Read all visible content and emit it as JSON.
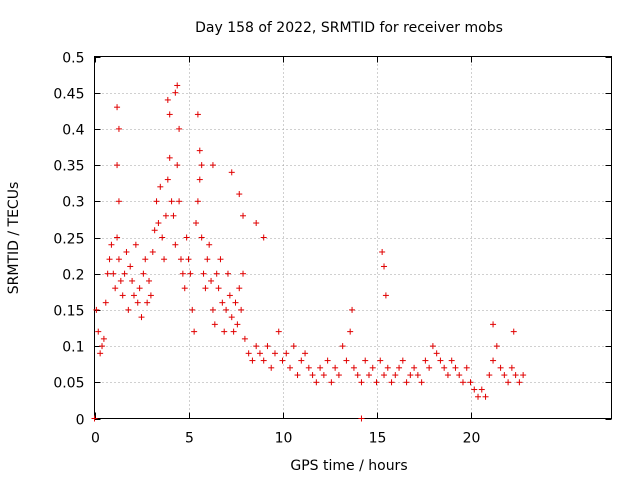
{
  "chart_data": {
    "type": "scatter",
    "title": "Day 158 of 2022, SRMTID for receiver mobs",
    "xlabel": "GPS time / hours",
    "ylabel": "SRMTID / TECUs",
    "xlim": [
      0,
      27.5
    ],
    "ylim": [
      0,
      0.5
    ],
    "xticks": [
      0,
      5,
      10,
      15,
      20
    ],
    "yticks": [
      0,
      0.05,
      0.1,
      0.15,
      0.2,
      0.25,
      0.3,
      0.35,
      0.4,
      0.45,
      0.5
    ],
    "xtick_labels": [
      "0",
      "5",
      "10",
      "15",
      "20"
    ],
    "ytick_labels": [
      "0",
      "0.05",
      "0.1",
      "0.15",
      "0.2",
      "0.25",
      "0.3",
      "0.35",
      "0.4",
      "0.45",
      "0.5"
    ],
    "grid": true,
    "marker": "+",
    "color": "#e00000",
    "series": [
      {
        "name": "SRMTID",
        "x": [
          0.1,
          0.2,
          0.3,
          0.4,
          0.5,
          0.6,
          0.7,
          0.8,
          0.9,
          1.0,
          1.1,
          1.2,
          1.3,
          1.3,
          1.4,
          1.5,
          1.6,
          1.7,
          1.8,
          1.9,
          2.0,
          2.1,
          2.2,
          2.3,
          2.4,
          2.5,
          2.6,
          2.7,
          2.8,
          2.9,
          3.0,
          3.1,
          3.2,
          3.3,
          3.4,
          3.5,
          3.6,
          3.7,
          3.8,
          3.9,
          4.0,
          4.1,
          4.2,
          4.3,
          4.4,
          4.5,
          4.6,
          4.7,
          4.8,
          4.9,
          5.0,
          5.1,
          5.2,
          5.3,
          5.4,
          5.5,
          5.6,
          5.7,
          5.8,
          5.9,
          6.0,
          6.1,
          6.2,
          6.3,
          6.4,
          6.5,
          6.6,
          6.7,
          6.8,
          6.9,
          7.0,
          7.1,
          7.2,
          7.3,
          7.4,
          7.5,
          7.6,
          7.7,
          7.8,
          7.9,
          8.0,
          8.2,
          8.4,
          8.6,
          8.8,
          9.0,
          9.2,
          9.4,
          9.6,
          9.8,
          10.0,
          10.2,
          10.4,
          10.6,
          10.8,
          11.0,
          11.2,
          11.4,
          11.6,
          11.8,
          12.0,
          12.2,
          12.4,
          12.6,
          12.8,
          13.0,
          13.2,
          13.4,
          13.6,
          13.8,
          14.0,
          14.2,
          14.4,
          14.6,
          14.8,
          15.0,
          15.2,
          15.4,
          15.6,
          15.8,
          16.0,
          16.2,
          16.4,
          16.6,
          16.8,
          17.0,
          17.2,
          17.4,
          17.6,
          17.8,
          18.0,
          18.2,
          18.4,
          18.6,
          18.8,
          19.0,
          19.2,
          19.4,
          19.6,
          19.8,
          20.0,
          20.2,
          20.4,
          20.6,
          20.8,
          21.0,
          21.2,
          21.4,
          21.6,
          21.8,
          22.0,
          22.2,
          22.4,
          22.6,
          22.8,
          1.2,
          1.3,
          1.2,
          3.9,
          4.0,
          4.3,
          4.4,
          4.5,
          5.5,
          5.6,
          5.7,
          6.3,
          7.3,
          7.7,
          7.9,
          8.6,
          9.0,
          13.7,
          15.3,
          15.4,
          15.5,
          21.2,
          22.3,
          0.0,
          14.2
        ],
        "y": [
          0.15,
          0.12,
          0.09,
          0.1,
          0.11,
          0.16,
          0.2,
          0.22,
          0.24,
          0.2,
          0.18,
          0.25,
          0.3,
          0.22,
          0.19,
          0.17,
          0.2,
          0.23,
          0.15,
          0.21,
          0.19,
          0.17,
          0.24,
          0.16,
          0.18,
          0.14,
          0.2,
          0.22,
          0.16,
          0.19,
          0.17,
          0.23,
          0.26,
          0.3,
          0.27,
          0.32,
          0.25,
          0.22,
          0.28,
          0.33,
          0.36,
          0.3,
          0.28,
          0.24,
          0.35,
          0.3,
          0.22,
          0.2,
          0.18,
          0.25,
          0.22,
          0.2,
          0.15,
          0.12,
          0.27,
          0.3,
          0.33,
          0.25,
          0.2,
          0.18,
          0.22,
          0.24,
          0.19,
          0.15,
          0.13,
          0.2,
          0.18,
          0.22,
          0.16,
          0.12,
          0.15,
          0.2,
          0.17,
          0.14,
          0.12,
          0.16,
          0.13,
          0.18,
          0.15,
          0.2,
          0.11,
          0.09,
          0.08,
          0.1,
          0.09,
          0.08,
          0.1,
          0.07,
          0.09,
          0.12,
          0.08,
          0.09,
          0.07,
          0.1,
          0.06,
          0.08,
          0.09,
          0.07,
          0.06,
          0.05,
          0.07,
          0.06,
          0.08,
          0.05,
          0.07,
          0.06,
          0.1,
          0.08,
          0.12,
          0.07,
          0.06,
          0.05,
          0.08,
          0.06,
          0.07,
          0.05,
          0.08,
          0.06,
          0.07,
          0.05,
          0.06,
          0.07,
          0.08,
          0.05,
          0.06,
          0.07,
          0.06,
          0.05,
          0.08,
          0.07,
          0.1,
          0.09,
          0.08,
          0.07,
          0.06,
          0.08,
          0.07,
          0.06,
          0.05,
          0.07,
          0.05,
          0.04,
          0.03,
          0.04,
          0.03,
          0.06,
          0.08,
          0.1,
          0.07,
          0.06,
          0.05,
          0.07,
          0.06,
          0.05,
          0.06,
          0.43,
          0.4,
          0.35,
          0.44,
          0.42,
          0.45,
          0.46,
          0.4,
          0.42,
          0.37,
          0.35,
          0.35,
          0.34,
          0.31,
          0.28,
          0.27,
          0.25,
          0.15,
          0.23,
          0.21,
          0.17,
          0.13,
          0.12,
          0.0,
          0.0
        ]
      }
    ]
  }
}
